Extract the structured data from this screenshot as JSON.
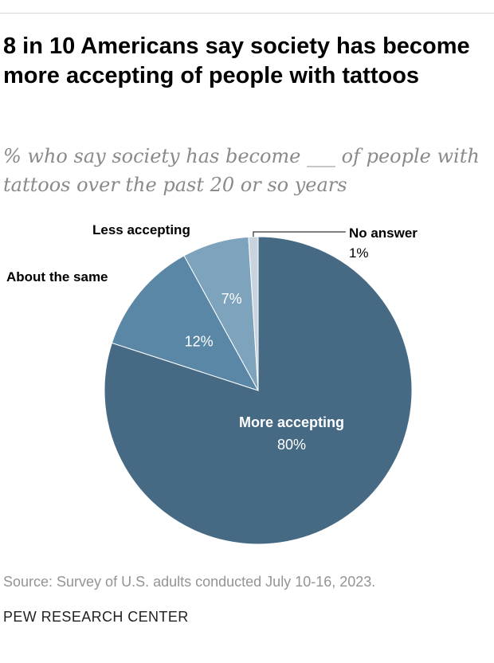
{
  "header": {
    "title": "8 in 10 Americans say society has become more accepting of people with tattoos",
    "subtitle": "% who say society has become ___ of people with tattoos over the past 20 or so years"
  },
  "chart_data": {
    "type": "pie",
    "slices": [
      {
        "label": "More accepting",
        "value": 80,
        "value_label": "80%",
        "color": "#466a84"
      },
      {
        "label": "About the same",
        "value": 12,
        "value_label": "12%",
        "color": "#5a87a6"
      },
      {
        "label": "Less accepting",
        "value": 7,
        "value_label": "7%",
        "color": "#7ea3bd"
      },
      {
        "label": "No answer",
        "value": 1,
        "value_label": "1%",
        "color": "#c7d4de"
      }
    ]
  },
  "footer": {
    "note": "Source: Survey of U.S. adults conducted July 10-16, 2023.",
    "brand": "PEW RESEARCH CENTER"
  }
}
